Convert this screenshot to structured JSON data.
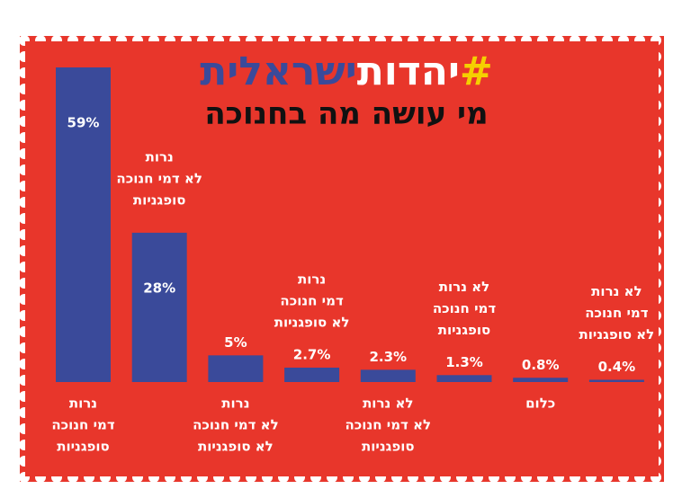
{
  "chart_data": {
    "type": "bar",
    "title_parts": [
      "#",
      "יהדות",
      "ישראלית"
    ],
    "title_colors": [
      "#f5d000",
      "#ffffff",
      "#3a4a9a"
    ],
    "subtitle": "מי עושה מה בחנוכה",
    "categories": [
      [
        "נרות",
        "דמי חנוכה",
        "סופגניות"
      ],
      [
        "נרות",
        "לא דמי חנוכה",
        "סופגניות"
      ],
      [
        "נרות",
        "לא דמי חנוכה",
        "לא סופגניות"
      ],
      [
        "נרות",
        "דמי חנוכה",
        "לא סופגניות"
      ],
      [
        "לא נרות",
        "לא דמי חנוכה",
        "סופגניות"
      ],
      [
        "לא נרות",
        "דמי חנוכה",
        "סופגניות"
      ],
      [
        "כלום"
      ],
      [
        "לא נרות",
        "דמי חנוכה",
        "לא סופגניות"
      ]
    ],
    "values": [
      59,
      28,
      5,
      2.7,
      2.3,
      1.3,
      0.8,
      0.4
    ],
    "value_labels": [
      "59%",
      "28%",
      "5%",
      "2.7%",
      "2.3%",
      "1.3%",
      "0.8%",
      "0.4%"
    ],
    "color": "#3a4a9a",
    "background": "#e8362b"
  }
}
